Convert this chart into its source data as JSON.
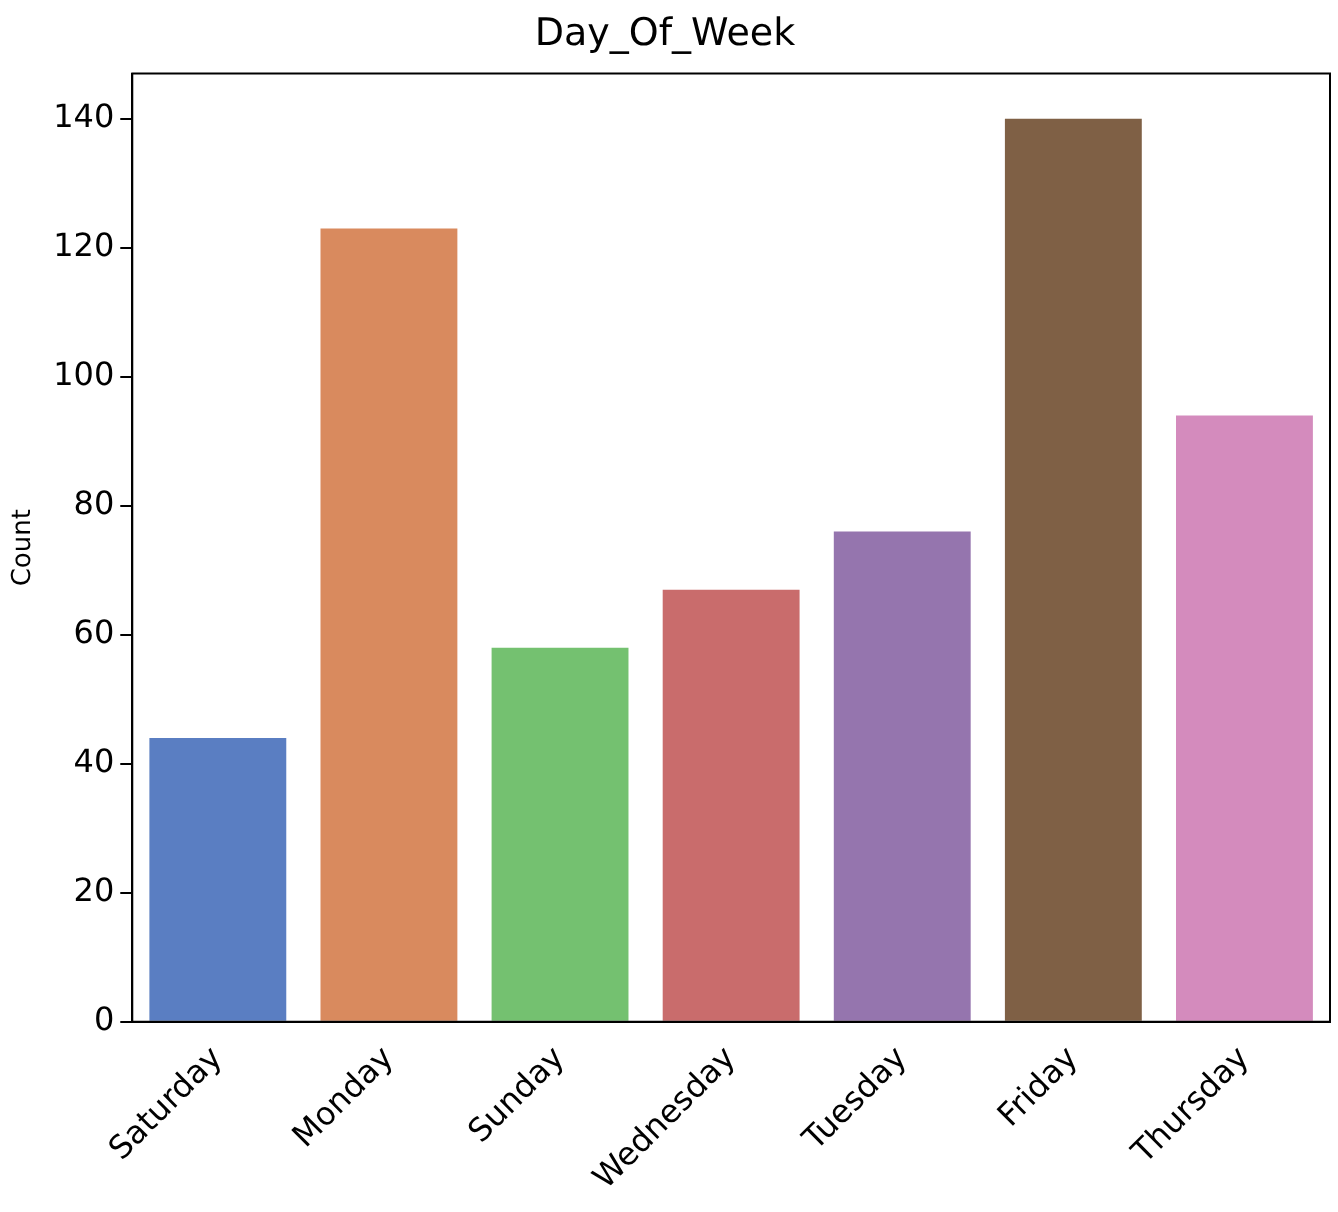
{
  "chart_data": {
    "type": "bar",
    "title": "Day_Of_Week",
    "ylabel": "Count",
    "categories": [
      "Saturday",
      "Monday",
      "Sunday",
      "Wednesday",
      "Tuesday",
      "Friday",
      "Thursday"
    ],
    "values": [
      44,
      123,
      58,
      67,
      76,
      140,
      94
    ],
    "colors": [
      "#5a7ec2",
      "#d98a5e",
      "#74c170",
      "#c96c6c",
      "#9575ae",
      "#7f6045",
      "#d48bbd"
    ],
    "ylim": [
      0,
      147
    ],
    "yticks": [
      0,
      20,
      40,
      60,
      80,
      100,
      120,
      140
    ],
    "grid": false,
    "legend": false
  }
}
